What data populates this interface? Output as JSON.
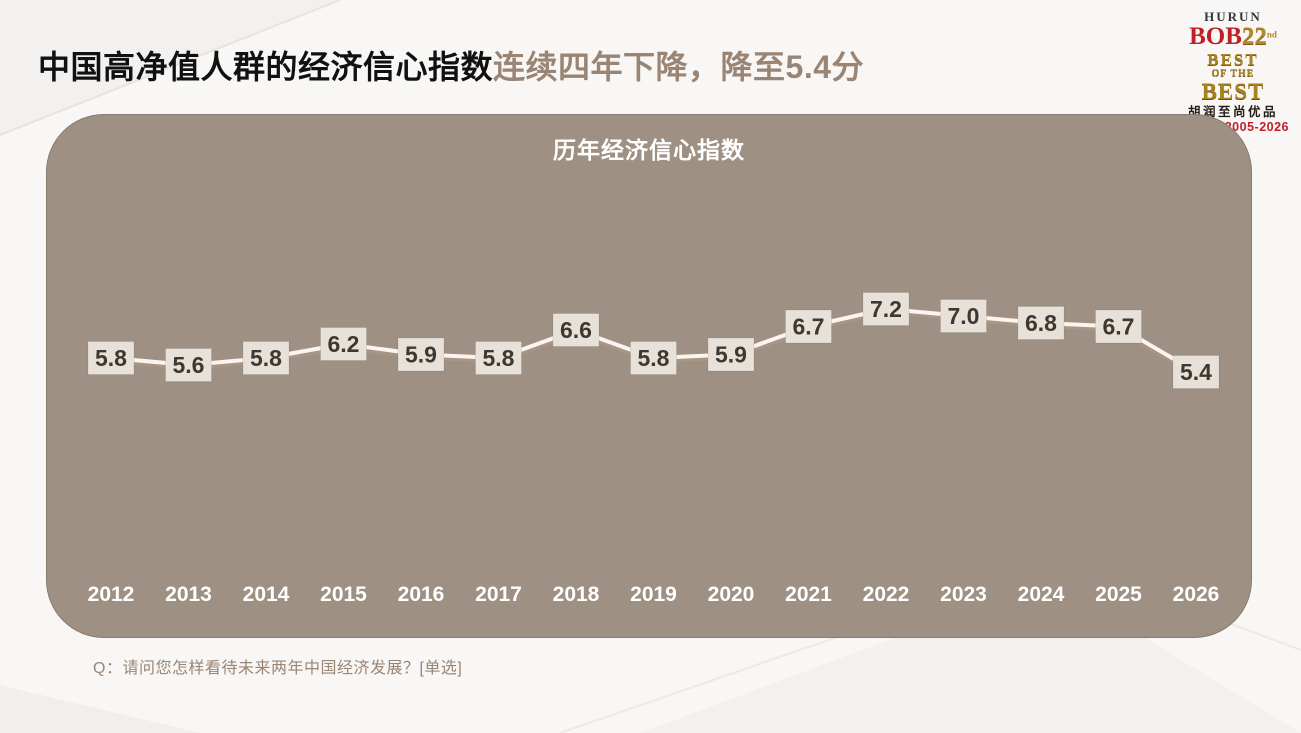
{
  "slide": {
    "title_black": "中国高净值人群的经济信心指数",
    "title_accent": "连续四年下降，降至5.4分",
    "accent_color": "#9a8575",
    "footnote": "Q：请问您怎样看待未来两年中国经济发展？[单选]"
  },
  "logo": {
    "brand": "HURUN",
    "bob": "BOB",
    "edition": "22",
    "edition_suffix": "nd",
    "best_line1": "BEST",
    "best_line2": "OF THE",
    "best_line3": "BEST",
    "cn_name": "胡润至尚优品",
    "years": "2005-2026"
  },
  "chart_data": {
    "type": "line",
    "title": "历年经济信心指数",
    "categories": [
      "2012",
      "2013",
      "2014",
      "2015",
      "2016",
      "2017",
      "2018",
      "2019",
      "2020",
      "2021",
      "2022",
      "2023",
      "2024",
      "2025",
      "2026"
    ],
    "values": [
      5.8,
      5.6,
      5.8,
      6.2,
      5.9,
      5.8,
      6.6,
      5.8,
      5.9,
      6.7,
      7.2,
      7.0,
      6.8,
      6.7,
      5.4
    ],
    "xlabel": "",
    "ylabel": "",
    "ylim": [
      4.5,
      8.5
    ],
    "grid": false,
    "legend": "none",
    "colors": {
      "panel_bg": "#9e9183",
      "line": "#fcf5ef",
      "line_shadow": "#b89c88",
      "label_bg": "#e8e1da",
      "label_text": "#3e3831",
      "year_text": "#ffffff",
      "title_text": "#ffffff"
    }
  }
}
